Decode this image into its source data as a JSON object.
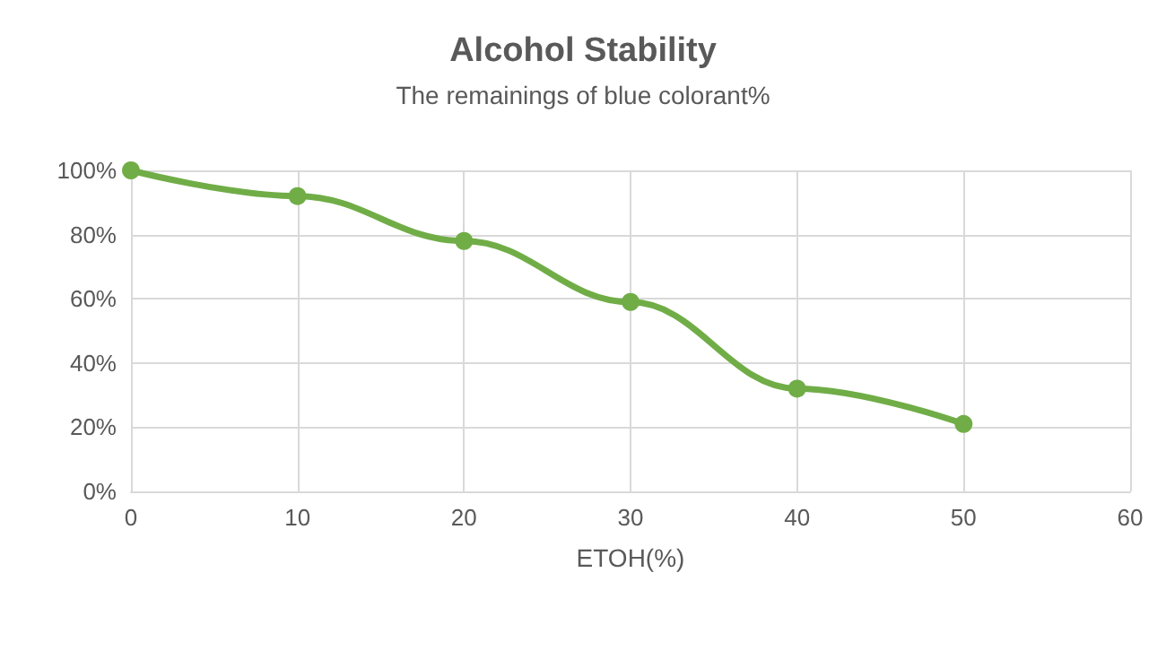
{
  "chart_data": {
    "type": "line",
    "title": "Alcohol Stability",
    "subtitle": "The remainings of blue colorant%",
    "xlabel": "ETOH(%)",
    "x": [
      0,
      10,
      20,
      30,
      40,
      50
    ],
    "series": [
      {
        "color": "#70ad47",
        "values": [
          100,
          92,
          78,
          59,
          32,
          21
        ]
      }
    ],
    "xlim": [
      0,
      60
    ],
    "xticks": [
      0,
      10,
      20,
      30,
      40,
      50,
      60
    ],
    "ylim": [
      0,
      100
    ],
    "yticks": [
      {
        "value": 0,
        "label": "0%"
      },
      {
        "value": 20,
        "label": "20%"
      },
      {
        "value": 40,
        "label": "40%"
      },
      {
        "value": 60,
        "label": "60%"
      },
      {
        "value": 80,
        "label": "80%"
      },
      {
        "value": 100,
        "label": "100%"
      }
    ],
    "grid": true,
    "marker": "circle",
    "line_style": "solid"
  }
}
